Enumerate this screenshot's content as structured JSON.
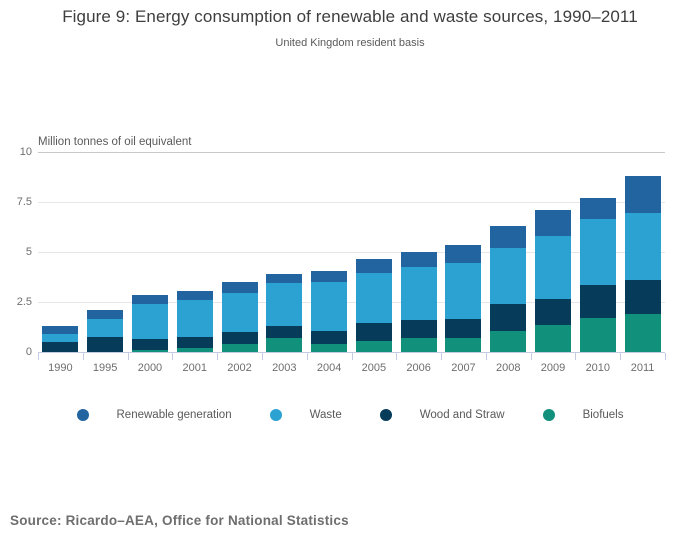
{
  "source": {
    "text": "Source: Ricardo–AEA, Office for National Statistics"
  },
  "legend": {
    "items": [
      {
        "label": "Renewable generation",
        "color": "#2264a0"
      },
      {
        "label": "Waste",
        "color": "#2ba2d2"
      },
      {
        "label": "Wood and Straw",
        "color": "#063c5a"
      },
      {
        "label": "Biofuels",
        "color": "#11907c"
      }
    ]
  },
  "chart_data": {
    "type": "bar",
    "stacked": true,
    "title": "Figure 9: Energy consumption of renewable and waste sources, 1990–2011",
    "subtitle": "United Kingdom resident basis",
    "ylabel": "Million tonnes of oil equivalent",
    "xlabel": "",
    "ylim": [
      0,
      10
    ],
    "y_ticks": [
      0,
      2.5,
      5,
      7.5,
      10
    ],
    "grid": true,
    "legend_position": "bottom",
    "categories": [
      "1990",
      "1995",
      "2000",
      "2001",
      "2002",
      "2003",
      "2004",
      "2005",
      "2006",
      "2007",
      "2008",
      "2009",
      "2010",
      "2011"
    ],
    "stack_order_note": "series listed bottom-to-top",
    "series": [
      {
        "name": "Biofuels",
        "color": "#11907c",
        "values": [
          0,
          0,
          0.1,
          0.2,
          0.4,
          0.7,
          0.4,
          0.55,
          0.7,
          0.7,
          1.05,
          1.35,
          1.7,
          1.9
        ]
      },
      {
        "name": "Wood and Straw",
        "color": "#063c5a",
        "values": [
          0.5,
          0.75,
          0.55,
          0.55,
          0.6,
          0.6,
          0.65,
          0.9,
          0.9,
          0.95,
          1.35,
          1.3,
          1.65,
          1.7
        ]
      },
      {
        "name": "Waste",
        "color": "#2ba2d2",
        "values": [
          0.4,
          0.9,
          1.75,
          1.85,
          1.95,
          2.15,
          2.45,
          2.5,
          2.65,
          2.8,
          2.8,
          3.15,
          3.3,
          3.35
        ]
      },
      {
        "name": "Renewable generation",
        "color": "#2264a0",
        "values": [
          0.4,
          0.45,
          0.45,
          0.45,
          0.55,
          0.45,
          0.55,
          0.7,
          0.75,
          0.9,
          1.1,
          1.3,
          1.05,
          1.85
        ]
      }
    ],
    "totals": [
      1.3,
      2.1,
      2.85,
      3.05,
      3.5,
      3.9,
      4.05,
      4.65,
      5.0,
      5.35,
      6.3,
      7.1,
      7.7,
      8.8
    ]
  }
}
